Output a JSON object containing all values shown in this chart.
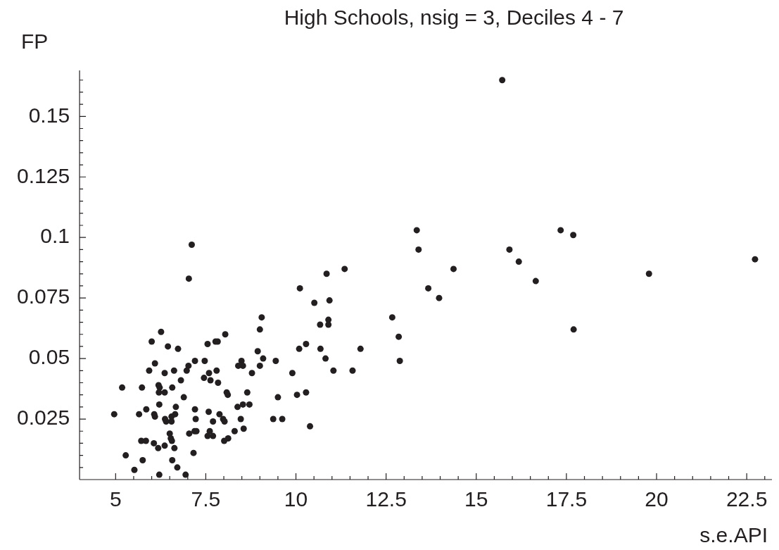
{
  "chart_data": {
    "type": "scatter",
    "title": "High Schools, nsig = 3, Deciles 4 - 7",
    "xlabel": "s.e.API",
    "ylabel": "FP",
    "color": "#231f20",
    "marker": "circle",
    "x": [
      9.05,
      9.0,
      6.26,
      8.04,
      6.0,
      7.55,
      7.77,
      7.83,
      6.45,
      6.73,
      8.94,
      9.09,
      6.09,
      7.2,
      7.47,
      7.02,
      8.4,
      8.49,
      8.53,
      9.0,
      9.44,
      5.93,
      6.62,
      6.97,
      7.8,
      6.36,
      7.59,
      8.78,
      6.81,
      7.45,
      7.63,
      7.84,
      5.18,
      5.73,
      6.19,
      6.22,
      6.57,
      6.2,
      6.36,
      8.08,
      8.11,
      8.65,
      6.89,
      9.5,
      6.21,
      6.67,
      8.38,
      8.53,
      8.71,
      5.85,
      7.2,
      4.96,
      5.65,
      6.07,
      6.09,
      6.65,
      6.55,
      6.37,
      6.4,
      6.55,
      7.58,
      7.88,
      7.98,
      8.02,
      7.22,
      7.7,
      8.47,
      9.37,
      9.62,
      6.5,
      7.04,
      7.19,
      7.24,
      7.61,
      7.55,
      7.7,
      8.3,
      8.55,
      6.53,
      6.56,
      5.71,
      5.84,
      6.06,
      6.18,
      6.36,
      6.63,
      8.01,
      8.12,
      5.28,
      5.75,
      6.57,
      7.16,
      5.52,
      6.71,
      6.21,
      6.94,
      7.11,
      7.03,
      13.35,
      13.4,
      14.37,
      13.67,
      13.97,
      11.35,
      10.85,
      10.11,
      10.51,
      10.93,
      12.67,
      10.9,
      10.67,
      10.9,
      12.85,
      10.28,
      10.09,
      10.68,
      11.79,
      10.82,
      12.88,
      9.9,
      11.04,
      11.57,
      10.03,
      10.28,
      10.39,
      15.72,
      17.34,
      17.69,
      15.92,
      16.18,
      16.65,
      19.79,
      22.73,
      17.7
    ],
    "values": [
      0.067,
      0.062,
      0.061,
      0.06,
      0.057,
      0.056,
      0.057,
      0.057,
      0.055,
      0.054,
      0.053,
      0.05,
      0.048,
      0.049,
      0.049,
      0.047,
      0.047,
      0.049,
      0.047,
      0.047,
      0.049,
      0.045,
      0.045,
      0.045,
      0.045,
      0.044,
      0.044,
      0.044,
      0.041,
      0.042,
      0.041,
      0.04,
      0.038,
      0.038,
      0.039,
      0.038,
      0.038,
      0.036,
      0.036,
      0.036,
      0.035,
      0.036,
      0.034,
      0.034,
      0.031,
      0.03,
      0.03,
      0.031,
      0.031,
      0.029,
      0.029,
      0.027,
      0.027,
      0.027,
      0.026,
      0.027,
      0.026,
      0.025,
      0.024,
      0.024,
      0.028,
      0.027,
      0.025,
      0.024,
      0.025,
      0.024,
      0.025,
      0.025,
      0.025,
      0.019,
      0.019,
      0.02,
      0.02,
      0.02,
      0.018,
      0.018,
      0.02,
      0.021,
      0.017,
      0.016,
      0.016,
      0.016,
      0.015,
      0.013,
      0.014,
      0.013,
      0.016,
      0.017,
      0.01,
      0.008,
      0.008,
      0.011,
      0.004,
      0.005,
      0.002,
      0.002,
      0.097,
      0.083,
      0.103,
      0.095,
      0.087,
      0.079,
      0.075,
      0.087,
      0.085,
      0.079,
      0.073,
      0.074,
      0.067,
      0.066,
      0.064,
      0.064,
      0.059,
      0.056,
      0.054,
      0.054,
      0.054,
      0.05,
      0.049,
      0.044,
      0.045,
      0.045,
      0.035,
      0.036,
      0.022,
      0.165,
      0.103,
      0.101,
      0.095,
      0.09,
      0.082,
      0.085,
      0.091,
      0.062
    ],
    "xlim": [
      4,
      23.2
    ],
    "ylim": [
      0,
      0.169
    ],
    "xticks": [
      5,
      {
        "value": 5.5,
        "label": null
      },
      {
        "value": 6,
        "label": null
      },
      {
        "value": 6.5,
        "label": null
      },
      {
        "value": 7,
        "label": null
      },
      7.5,
      {
        "value": 8,
        "label": null
      },
      {
        "value": 8.5,
        "label": null
      },
      {
        "value": 9,
        "label": null
      },
      {
        "value": 9.5,
        "label": null
      },
      10,
      {
        "value": 10.5,
        "label": null
      },
      {
        "value": 11,
        "label": null
      },
      {
        "value": 11.5,
        "label": null
      },
      {
        "value": 12,
        "label": null
      },
      12.5,
      {
        "value": 13,
        "label": null
      },
      {
        "value": 13.5,
        "label": null
      },
      {
        "value": 14,
        "label": null
      },
      {
        "value": 14.5,
        "label": null
      },
      15,
      {
        "value": 15.5,
        "label": null
      },
      {
        "value": 16,
        "label": null
      },
      {
        "value": 16.5,
        "label": null
      },
      {
        "value": 17,
        "label": null
      },
      17.5,
      {
        "value": 18,
        "label": null
      },
      {
        "value": 18.5,
        "label": null
      },
      {
        "value": 19,
        "label": null
      },
      {
        "value": 19.5,
        "label": null
      },
      20,
      {
        "value": 20.5,
        "label": null
      },
      {
        "value": 21,
        "label": null
      },
      {
        "value": 21.5,
        "label": null
      },
      {
        "value": 22,
        "label": null
      },
      22.5,
      {
        "value": 23,
        "label": null
      }
    ],
    "yticks": [
      {
        "value": 0.005,
        "label": null
      },
      {
        "value": 0.01,
        "label": null
      },
      {
        "value": 0.015,
        "label": null
      },
      {
        "value": 0.02,
        "label": null
      },
      0.025,
      {
        "value": 0.03,
        "label": null
      },
      {
        "value": 0.035,
        "label": null
      },
      {
        "value": 0.04,
        "label": null
      },
      {
        "value": 0.045,
        "label": null
      },
      0.05,
      {
        "value": 0.055,
        "label": null
      },
      {
        "value": 0.06,
        "label": null
      },
      {
        "value": 0.065,
        "label": null
      },
      {
        "value": 0.07,
        "label": null
      },
      0.075,
      {
        "value": 0.08,
        "label": null
      },
      {
        "value": 0.085,
        "label": null
      },
      {
        "value": 0.09,
        "label": null
      },
      {
        "value": 0.095,
        "label": null
      },
      0.1,
      {
        "value": 0.105,
        "label": null
      },
      {
        "value": 0.11,
        "label": null
      },
      {
        "value": 0.115,
        "label": null
      },
      {
        "value": 0.12,
        "label": null
      },
      0.125,
      {
        "value": 0.13,
        "label": null
      },
      {
        "value": 0.135,
        "label": null
      },
      {
        "value": 0.14,
        "label": null
      },
      {
        "value": 0.145,
        "label": null
      },
      0.15,
      {
        "value": 0.155,
        "label": null
      },
      {
        "value": 0.16,
        "label": null
      },
      {
        "value": 0.165,
        "label": null
      }
    ]
  }
}
